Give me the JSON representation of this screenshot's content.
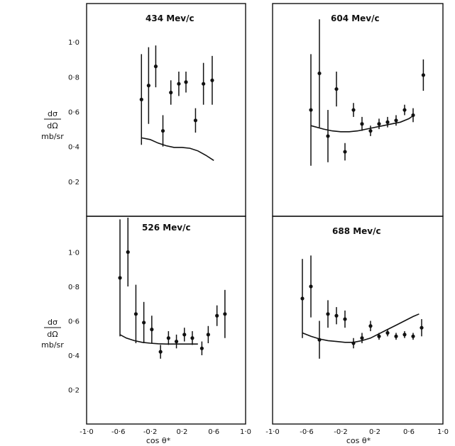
{
  "figure": {
    "ylabel": {
      "top": "dσ",
      "bottom": "dΩ",
      "units": "mb/sr"
    },
    "ytick_labels": [
      "0·2",
      "0·4",
      "0·6",
      "0·8",
      "1·0"
    ],
    "xtick_labels": [
      "-1·0",
      "-0·6",
      "-0·2",
      "0·2",
      "0·6",
      "1·0"
    ],
    "xlabel_left": "cos θ*",
    "xlabel_right": "cos θ*"
  },
  "chart_data": [
    {
      "type": "scatter",
      "title": "434 Mev/c",
      "xlim": [
        -1.0,
        1.0
      ],
      "ylim": [
        0.0,
        1.2
      ],
      "points": [
        {
          "x": -0.31,
          "y": 0.67,
          "err": 0.26
        },
        {
          "x": -0.22,
          "y": 0.75,
          "err": 0.22
        },
        {
          "x": -0.13,
          "y": 0.86,
          "err": 0.12
        },
        {
          "x": -0.04,
          "y": 0.49,
          "err": 0.09
        },
        {
          "x": 0.06,
          "y": 0.71,
          "err": 0.07
        },
        {
          "x": 0.16,
          "y": 0.76,
          "err": 0.07
        },
        {
          "x": 0.25,
          "y": 0.77,
          "err": 0.06
        },
        {
          "x": 0.37,
          "y": 0.55,
          "err": 0.07
        },
        {
          "x": 0.47,
          "y": 0.76,
          "err": 0.12
        },
        {
          "x": 0.58,
          "y": 0.78,
          "err": 0.14
        }
      ],
      "curve": [
        [
          -0.31,
          0.45
        ],
        [
          -0.2,
          0.44
        ],
        [
          -0.1,
          0.42
        ],
        [
          0.0,
          0.405
        ],
        [
          0.1,
          0.395
        ],
        [
          0.2,
          0.395
        ],
        [
          0.3,
          0.39
        ],
        [
          0.4,
          0.375
        ],
        [
          0.5,
          0.35
        ],
        [
          0.6,
          0.32
        ]
      ]
    },
    {
      "type": "scatter",
      "title": "604 Mev/c",
      "xlim": [
        -1.0,
        1.0
      ],
      "ylim": [
        0.0,
        1.2
      ],
      "points": [
        {
          "x": -0.55,
          "y": 0.61,
          "err": 0.32
        },
        {
          "x": -0.45,
          "y": 0.82,
          "err": 0.31
        },
        {
          "x": -0.35,
          "y": 0.46,
          "err": 0.15
        },
        {
          "x": -0.25,
          "y": 0.73,
          "err": 0.1
        },
        {
          "x": -0.15,
          "y": 0.37,
          "err": 0.05
        },
        {
          "x": -0.05,
          "y": 0.61,
          "err": 0.04
        },
        {
          "x": 0.05,
          "y": 0.53,
          "err": 0.04
        },
        {
          "x": 0.15,
          "y": 0.49,
          "err": 0.03
        },
        {
          "x": 0.25,
          "y": 0.53,
          "err": 0.03
        },
        {
          "x": 0.35,
          "y": 0.54,
          "err": 0.03
        },
        {
          "x": 0.45,
          "y": 0.55,
          "err": 0.03
        },
        {
          "x": 0.55,
          "y": 0.61,
          "err": 0.03
        },
        {
          "x": 0.65,
          "y": 0.58,
          "err": 0.04
        },
        {
          "x": 0.77,
          "y": 0.81,
          "err": 0.09
        }
      ],
      "curve": [
        [
          -0.55,
          0.52
        ],
        [
          -0.4,
          0.5
        ],
        [
          -0.3,
          0.49
        ],
        [
          -0.2,
          0.485
        ],
        [
          -0.1,
          0.485
        ],
        [
          0.0,
          0.49
        ],
        [
          0.1,
          0.5
        ],
        [
          0.2,
          0.51
        ],
        [
          0.3,
          0.52
        ],
        [
          0.4,
          0.53
        ],
        [
          0.5,
          0.54
        ],
        [
          0.6,
          0.56
        ],
        [
          0.66,
          0.58
        ]
      ]
    },
    {
      "type": "scatter",
      "title": "526 Mev/c",
      "xlim": [
        -1.0,
        1.0
      ],
      "ylim": [
        0.0,
        1.2
      ],
      "points": [
        {
          "x": -0.58,
          "y": 0.85,
          "err": 0.34
        },
        {
          "x": -0.48,
          "y": 1.0,
          "err": 0.2
        },
        {
          "x": -0.38,
          "y": 0.64,
          "err": 0.17
        },
        {
          "x": -0.28,
          "y": 0.59,
          "err": 0.12
        },
        {
          "x": -0.18,
          "y": 0.55,
          "err": 0.08
        },
        {
          "x": -0.07,
          "y": 0.42,
          "err": 0.04
        },
        {
          "x": 0.03,
          "y": 0.5,
          "err": 0.04
        },
        {
          "x": 0.13,
          "y": 0.48,
          "err": 0.04
        },
        {
          "x": 0.23,
          "y": 0.52,
          "err": 0.04
        },
        {
          "x": 0.33,
          "y": 0.5,
          "err": 0.04
        },
        {
          "x": 0.45,
          "y": 0.44,
          "err": 0.04
        },
        {
          "x": 0.53,
          "y": 0.52,
          "err": 0.05
        },
        {
          "x": 0.64,
          "y": 0.63,
          "err": 0.06
        },
        {
          "x": 0.74,
          "y": 0.64,
          "err": 0.14
        }
      ],
      "curve": [
        [
          -0.58,
          0.52
        ],
        [
          -0.5,
          0.5
        ],
        [
          -0.4,
          0.485
        ],
        [
          -0.3,
          0.475
        ],
        [
          -0.2,
          0.47
        ],
        [
          -0.1,
          0.467
        ],
        [
          0.0,
          0.465
        ],
        [
          0.1,
          0.465
        ],
        [
          0.2,
          0.465
        ],
        [
          0.3,
          0.465
        ],
        [
          0.4,
          0.465
        ]
      ]
    },
    {
      "type": "scatter",
      "title": "688 Mev/c",
      "xlim": [
        -1.0,
        1.0
      ],
      "ylim": [
        0.0,
        1.2
      ],
      "points": [
        {
          "x": -0.65,
          "y": 0.73,
          "err": 0.23
        },
        {
          "x": -0.55,
          "y": 0.8,
          "err": 0.18
        },
        {
          "x": -0.45,
          "y": 0.49,
          "err": 0.11
        },
        {
          "x": -0.35,
          "y": 0.64,
          "err": 0.08
        },
        {
          "x": -0.25,
          "y": 0.63,
          "err": 0.05
        },
        {
          "x": -0.15,
          "y": 0.61,
          "err": 0.05
        },
        {
          "x": -0.05,
          "y": 0.47,
          "err": 0.03
        },
        {
          "x": 0.05,
          "y": 0.5,
          "err": 0.03
        },
        {
          "x": 0.15,
          "y": 0.57,
          "err": 0.03
        },
        {
          "x": 0.25,
          "y": 0.51,
          "err": 0.02
        },
        {
          "x": 0.35,
          "y": 0.53,
          "err": 0.02
        },
        {
          "x": 0.45,
          "y": 0.51,
          "err": 0.02
        },
        {
          "x": 0.55,
          "y": 0.52,
          "err": 0.02
        },
        {
          "x": 0.65,
          "y": 0.51,
          "err": 0.02
        },
        {
          "x": 0.75,
          "y": 0.56,
          "err": 0.05
        }
      ],
      "curve": [
        [
          -0.65,
          0.53
        ],
        [
          -0.55,
          0.51
        ],
        [
          -0.45,
          0.495
        ],
        [
          -0.35,
          0.485
        ],
        [
          -0.25,
          0.48
        ],
        [
          -0.15,
          0.475
        ],
        [
          -0.05,
          0.475
        ],
        [
          0.05,
          0.485
        ],
        [
          0.15,
          0.5
        ],
        [
          0.25,
          0.525
        ],
        [
          0.35,
          0.55
        ],
        [
          0.45,
          0.575
        ],
        [
          0.55,
          0.6
        ],
        [
          0.65,
          0.625
        ],
        [
          0.72,
          0.64
        ]
      ]
    }
  ]
}
